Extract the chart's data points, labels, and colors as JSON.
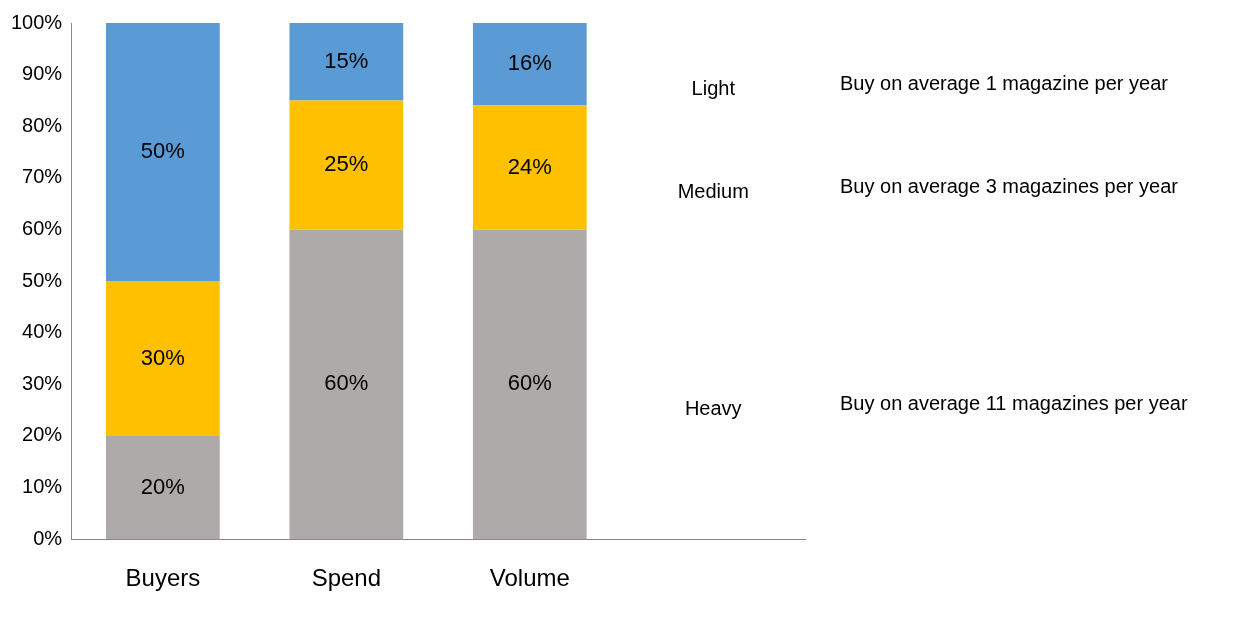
{
  "chart_data": {
    "type": "bar",
    "stacked": true,
    "categories": [
      "Buyers",
      "Spend",
      "Volume",
      null
    ],
    "series": [
      {
        "name": "Heavy",
        "color": "#aeaaaa",
        "values": [
          20,
          60,
          60,
          null
        ],
        "value_labels": [
          "20%",
          "60%",
          "60%",
          null
        ]
      },
      {
        "name": "Medium",
        "color": "#ffc000",
        "values": [
          30,
          25,
          24,
          null
        ],
        "value_labels": [
          "30%",
          "25%",
          "24%",
          null
        ]
      },
      {
        "name": "Light",
        "color": "#5b9bd5",
        "values": [
          50,
          15,
          16,
          null
        ],
        "value_labels": [
          "50%",
          "15%",
          "16%",
          null
        ]
      }
    ],
    "ylim": [
      0,
      100
    ],
    "yticks": [
      {
        "value": 0,
        "label": "0%"
      },
      {
        "value": 10,
        "label": "10%"
      },
      {
        "value": 20,
        "label": "20%"
      },
      {
        "value": 30,
        "label": "30%"
      },
      {
        "value": 40,
        "label": "40%"
      },
      {
        "value": 50,
        "label": "50%"
      },
      {
        "value": 60,
        "label": "60%"
      },
      {
        "value": 70,
        "label": "70%"
      },
      {
        "value": 80,
        "label": "80%"
      },
      {
        "value": 90,
        "label": "90%"
      },
      {
        "value": 100,
        "label": "100%"
      }
    ],
    "grid": false,
    "legend": false,
    "annotations": [
      "Buy on average 11 magazines per year",
      "Buy on average 3 magazines per year",
      "Buy on average 1 magazine per year"
    ]
  }
}
